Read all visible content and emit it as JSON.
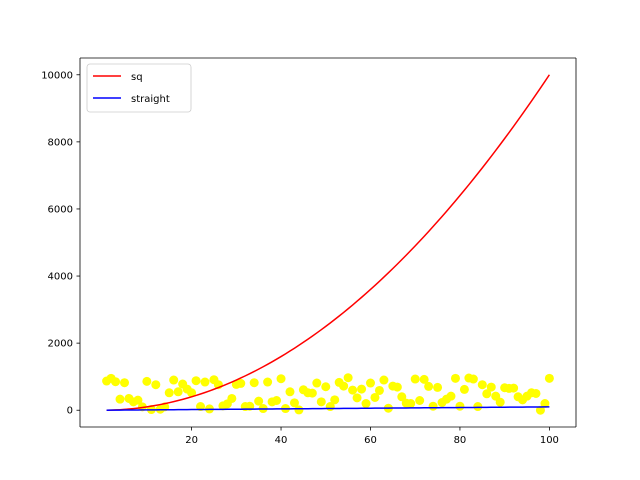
{
  "chart_data": {
    "type": "line",
    "title": "",
    "xlabel": "",
    "ylabel": "",
    "xlim": [
      -4.95,
      105.95
    ],
    "ylim": [
      -499.95,
      10499.95
    ],
    "xticks": [
      20,
      40,
      60,
      80,
      100
    ],
    "xtick_labels": [
      "20",
      "40",
      "60",
      "80",
      "100"
    ],
    "yticks": [
      0,
      2000,
      4000,
      6000,
      8000,
      10000
    ],
    "ytick_labels": [
      "0",
      "2000",
      "4000",
      "6000",
      "8000",
      "10000"
    ],
    "grid": false,
    "legend": {
      "placement": "top-left",
      "entries": [
        "sq",
        "straight"
      ]
    },
    "series": [
      {
        "name": "sq",
        "type": "line",
        "color": "#ff0000",
        "formula": "y = x^2",
        "x_range": [
          1,
          100
        ]
      },
      {
        "name": "straight",
        "type": "line",
        "color": "#0000ff",
        "formula": "y = x",
        "x_range": [
          1,
          100
        ]
      },
      {
        "type": "scatter",
        "color": "#ffff00",
        "x_start": 1,
        "x_step": 1,
        "y": [
          870,
          950,
          850,
          330,
          820,
          350,
          250,
          300,
          100,
          860,
          20,
          760,
          30,
          100,
          520,
          900,
          550,
          780,
          630,
          520,
          880,
          110,
          840,
          40,
          910,
          760,
          130,
          190,
          350,
          770,
          800,
          110,
          120,
          820,
          270,
          50,
          840,
          250,
          290,
          940,
          50,
          550,
          220,
          10,
          610,
          520,
          510,
          810,
          250,
          700,
          110,
          310,
          830,
          720,
          970,
          600,
          370,
          630,
          200,
          810,
          380,
          590,
          900,
          60,
          720,
          690,
          400,
          210,
          200,
          930,
          290,
          920,
          710,
          120,
          680,
          230,
          330,
          420,
          950,
          120,
          620,
          960,
          930,
          110,
          760,
          490,
          690,
          420,
          240,
          670,
          650,
          660,
          400,
          310,
          420,
          520,
          500,
          0,
          200,
          950
        ]
      }
    ]
  }
}
